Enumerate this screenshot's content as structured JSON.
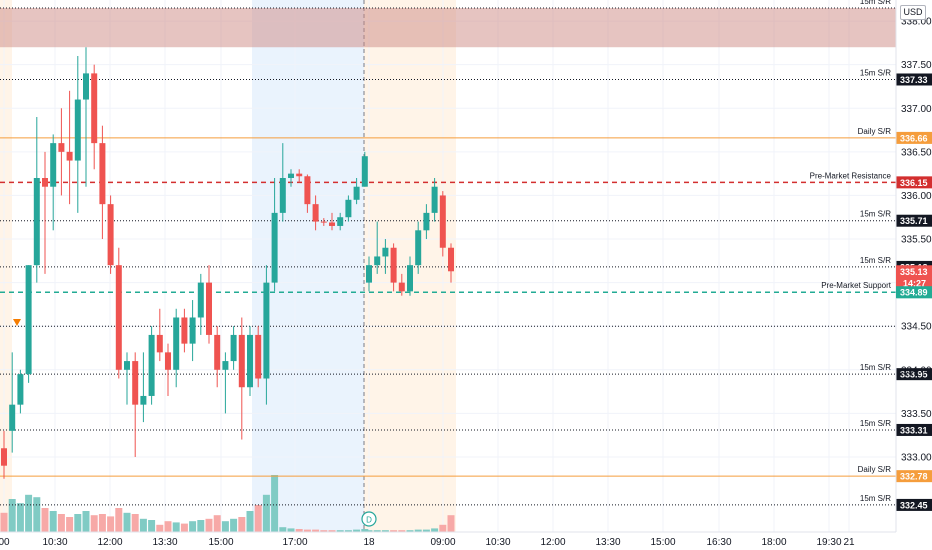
{
  "currency": "USD",
  "colors": {
    "up": "#26a69a",
    "down": "#ef5350",
    "vol_up": "#80cbc4",
    "vol_down": "#f7a9a7",
    "resistance": "#d32f2f",
    "support": "#22ab94",
    "daily": "#f59d3c",
    "sr_dotted": "#131722",
    "grid": "#f0f3fa"
  },
  "chart_data": {
    "type": "candlestick",
    "symbol_hidden": true,
    "y_range": [
      332.3,
      338.15
    ],
    "y_ticks": [
      "338.00",
      "337.50",
      "337.00",
      "336.50",
      "336.00",
      "335.50",
      "335.00",
      "334.50",
      "334.00",
      "333.50",
      "333.00"
    ],
    "x_ticks": [
      "00",
      "10:30",
      "12:00",
      "13:30",
      "15:00",
      "17:00",
      "18",
      "09:00",
      "10:30",
      "12:00",
      "13:30",
      "15:00",
      "16:30",
      "18:00",
      "19:30",
      "21"
    ],
    "levels": [
      {
        "label": "15m S/R",
        "value": 338.15,
        "tag": "",
        "style": "dotted"
      },
      {
        "label": "15m S/R",
        "value": 337.33,
        "tag": "337.33",
        "style": "dotted"
      },
      {
        "label": "Daily S/R",
        "value": 336.66,
        "tag": "336.66",
        "style": "daily"
      },
      {
        "label": "Pre-Market Resistance",
        "value": 336.15,
        "tag": "336.15",
        "style": "resistance"
      },
      {
        "label": "15m S/R",
        "value": 335.71,
        "tag": "335.71",
        "style": "dotted"
      },
      {
        "label": "15m S/R",
        "value": 335.18,
        "tag": "335.18",
        "style": "dotted"
      },
      {
        "label": "Pre-Market Support",
        "value": 334.89,
        "tag": "334.89",
        "style": "support"
      },
      {
        "label": "",
        "value": 334.5,
        "tag": "",
        "style": "dotted"
      },
      {
        "label": "15m S/R",
        "value": 333.95,
        "tag": "333.95",
        "style": "dotted"
      },
      {
        "label": "15m S/R",
        "value": 333.31,
        "tag": "333.31",
        "style": "dotted"
      },
      {
        "label": "Daily S/R",
        "value": 332.78,
        "tag": "332.78",
        "style": "daily"
      },
      {
        "label": "15m S/R",
        "value": 332.45,
        "tag": "332.45",
        "style": "dotted"
      }
    ],
    "last_price": {
      "value": "335.13",
      "countdown": "14:27"
    },
    "zones": [
      {
        "name": "resistance-zone",
        "from": 337.7,
        "to": 338.15
      }
    ],
    "candles": [
      [
        333.1,
        333.3,
        332.75,
        332.9
      ],
      [
        333.3,
        334.2,
        333.05,
        333.6
      ],
      [
        333.6,
        334.0,
        333.5,
        333.95
      ],
      [
        333.95,
        335.2,
        333.85,
        335.2
      ],
      [
        335.2,
        336.9,
        335.0,
        336.2
      ],
      [
        336.2,
        336.5,
        335.1,
        336.1
      ],
      [
        336.1,
        336.7,
        335.6,
        336.6
      ],
      [
        336.6,
        337.0,
        336.0,
        336.5
      ],
      [
        336.5,
        337.2,
        335.9,
        336.4
      ],
      [
        336.4,
        337.6,
        335.8,
        337.1
      ],
      [
        337.1,
        337.7,
        336.1,
        337.4
      ],
      [
        337.4,
        337.5,
        336.3,
        336.6
      ],
      [
        336.6,
        336.8,
        335.5,
        335.9
      ],
      [
        335.9,
        336.0,
        335.1,
        335.2
      ],
      [
        335.2,
        335.4,
        333.9,
        334.0
      ],
      [
        334.0,
        334.2,
        333.6,
        334.1
      ],
      [
        334.1,
        334.2,
        333.0,
        333.6
      ],
      [
        333.6,
        334.2,
        333.4,
        333.7
      ],
      [
        333.7,
        334.5,
        333.6,
        334.4
      ],
      [
        334.4,
        334.7,
        334.1,
        334.2
      ],
      [
        334.2,
        334.3,
        333.7,
        334.0
      ],
      [
        334.0,
        334.7,
        333.8,
        334.6
      ],
      [
        334.6,
        334.7,
        334.2,
        334.3
      ],
      [
        334.3,
        334.8,
        334.1,
        334.6
      ],
      [
        334.6,
        335.1,
        334.4,
        335.0
      ],
      [
        335.0,
        335.2,
        334.3,
        334.4
      ],
      [
        334.4,
        334.5,
        333.8,
        334.0
      ],
      [
        334.0,
        334.2,
        333.5,
        334.1
      ],
      [
        334.1,
        334.5,
        334.0,
        334.4
      ],
      [
        334.4,
        334.6,
        333.2,
        333.8
      ],
      [
        333.8,
        334.5,
        333.7,
        334.4
      ],
      [
        334.4,
        334.5,
        333.8,
        333.9
      ],
      [
        333.9,
        335.2,
        333.6,
        335.0
      ],
      [
        335.0,
        336.2,
        334.9,
        335.8
      ],
      [
        335.8,
        336.6,
        335.7,
        336.2
      ],
      [
        336.2,
        336.3,
        336.1,
        336.25
      ],
      [
        336.25,
        336.3,
        336.15,
        336.22
      ],
      [
        336.22,
        336.24,
        335.8,
        335.9
      ],
      [
        335.9,
        336.0,
        335.6,
        335.7
      ],
      [
        335.7,
        335.74,
        335.65,
        335.69
      ],
      [
        335.69,
        335.8,
        335.6,
        335.65
      ],
      [
        335.65,
        335.8,
        335.6,
        335.75
      ],
      [
        335.75,
        336.0,
        335.7,
        335.95
      ],
      [
        335.95,
        336.2,
        335.9,
        336.1
      ],
      [
        336.1,
        336.5,
        336.1,
        336.45
      ],
      [
        335.0,
        335.3,
        334.9,
        335.2
      ],
      [
        335.2,
        335.7,
        335.1,
        335.3
      ],
      [
        335.3,
        335.5,
        335.1,
        335.4
      ],
      [
        335.4,
        335.45,
        334.9,
        335.0
      ],
      [
        335.0,
        335.1,
        334.85,
        334.9
      ],
      [
        334.9,
        335.3,
        334.85,
        335.2
      ],
      [
        335.2,
        335.7,
        335.1,
        335.6
      ],
      [
        335.6,
        335.9,
        335.5,
        335.8
      ],
      [
        335.8,
        336.2,
        335.7,
        336.1
      ],
      [
        336.0,
        336.05,
        335.3,
        335.4
      ],
      [
        335.4,
        335.45,
        335.0,
        335.13
      ]
    ],
    "volumes": [
      0.32,
      0.55,
      0.48,
      0.62,
      0.58,
      0.4,
      0.35,
      0.3,
      0.25,
      0.3,
      0.35,
      0.28,
      0.3,
      0.26,
      0.4,
      0.32,
      0.3,
      0.22,
      0.2,
      0.12,
      0.18,
      0.16,
      0.14,
      0.18,
      0.2,
      0.22,
      0.28,
      0.18,
      0.22,
      0.25,
      0.35,
      0.45,
      0.62,
      0.95,
      0.08,
      0.06,
      0.05,
      0.04,
      0.04,
      0.03,
      0.03,
      0.03,
      0.03,
      0.04,
      0.05,
      0.03,
      0.03,
      0.03,
      0.03,
      0.03,
      0.03,
      0.04,
      0.04,
      0.06,
      0.12,
      0.28
    ],
    "timeline_marker": "D",
    "arrow_marker": "down"
  }
}
